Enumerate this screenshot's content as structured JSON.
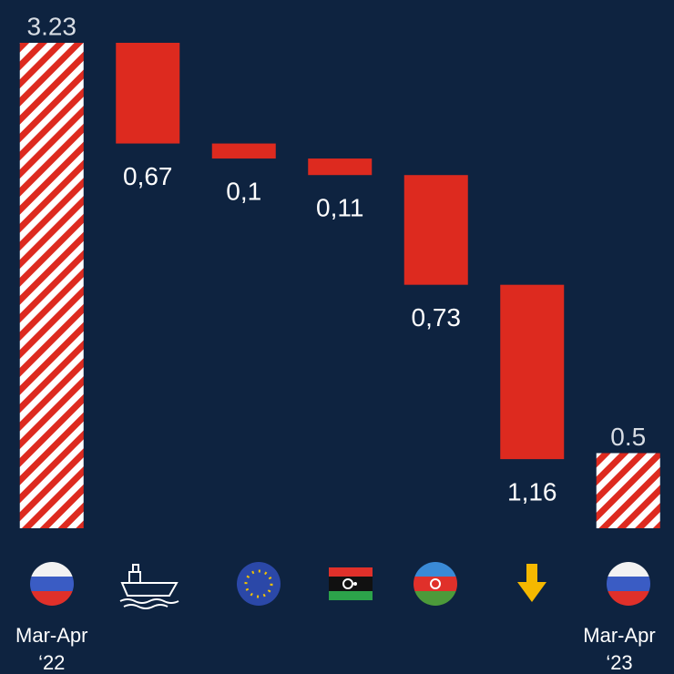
{
  "chart_data": {
    "type": "waterfall",
    "categories": [
      "Mar-Apr\n‘22",
      null,
      null,
      null,
      null,
      null,
      "Mar-Apr\n‘23"
    ],
    "measure": [
      "total",
      "relative",
      "relative",
      "relative",
      "relative",
      "relative",
      "total"
    ],
    "values": [
      3.23,
      -0.67,
      -0.1,
      -0.11,
      -0.73,
      -1.16,
      0.5
    ],
    "value_labels": [
      "3.23",
      "0,67",
      "0,1",
      "0,11",
      "0,73",
      "1,16",
      "0.5"
    ],
    "color": "#dd2a1f"
  }
}
